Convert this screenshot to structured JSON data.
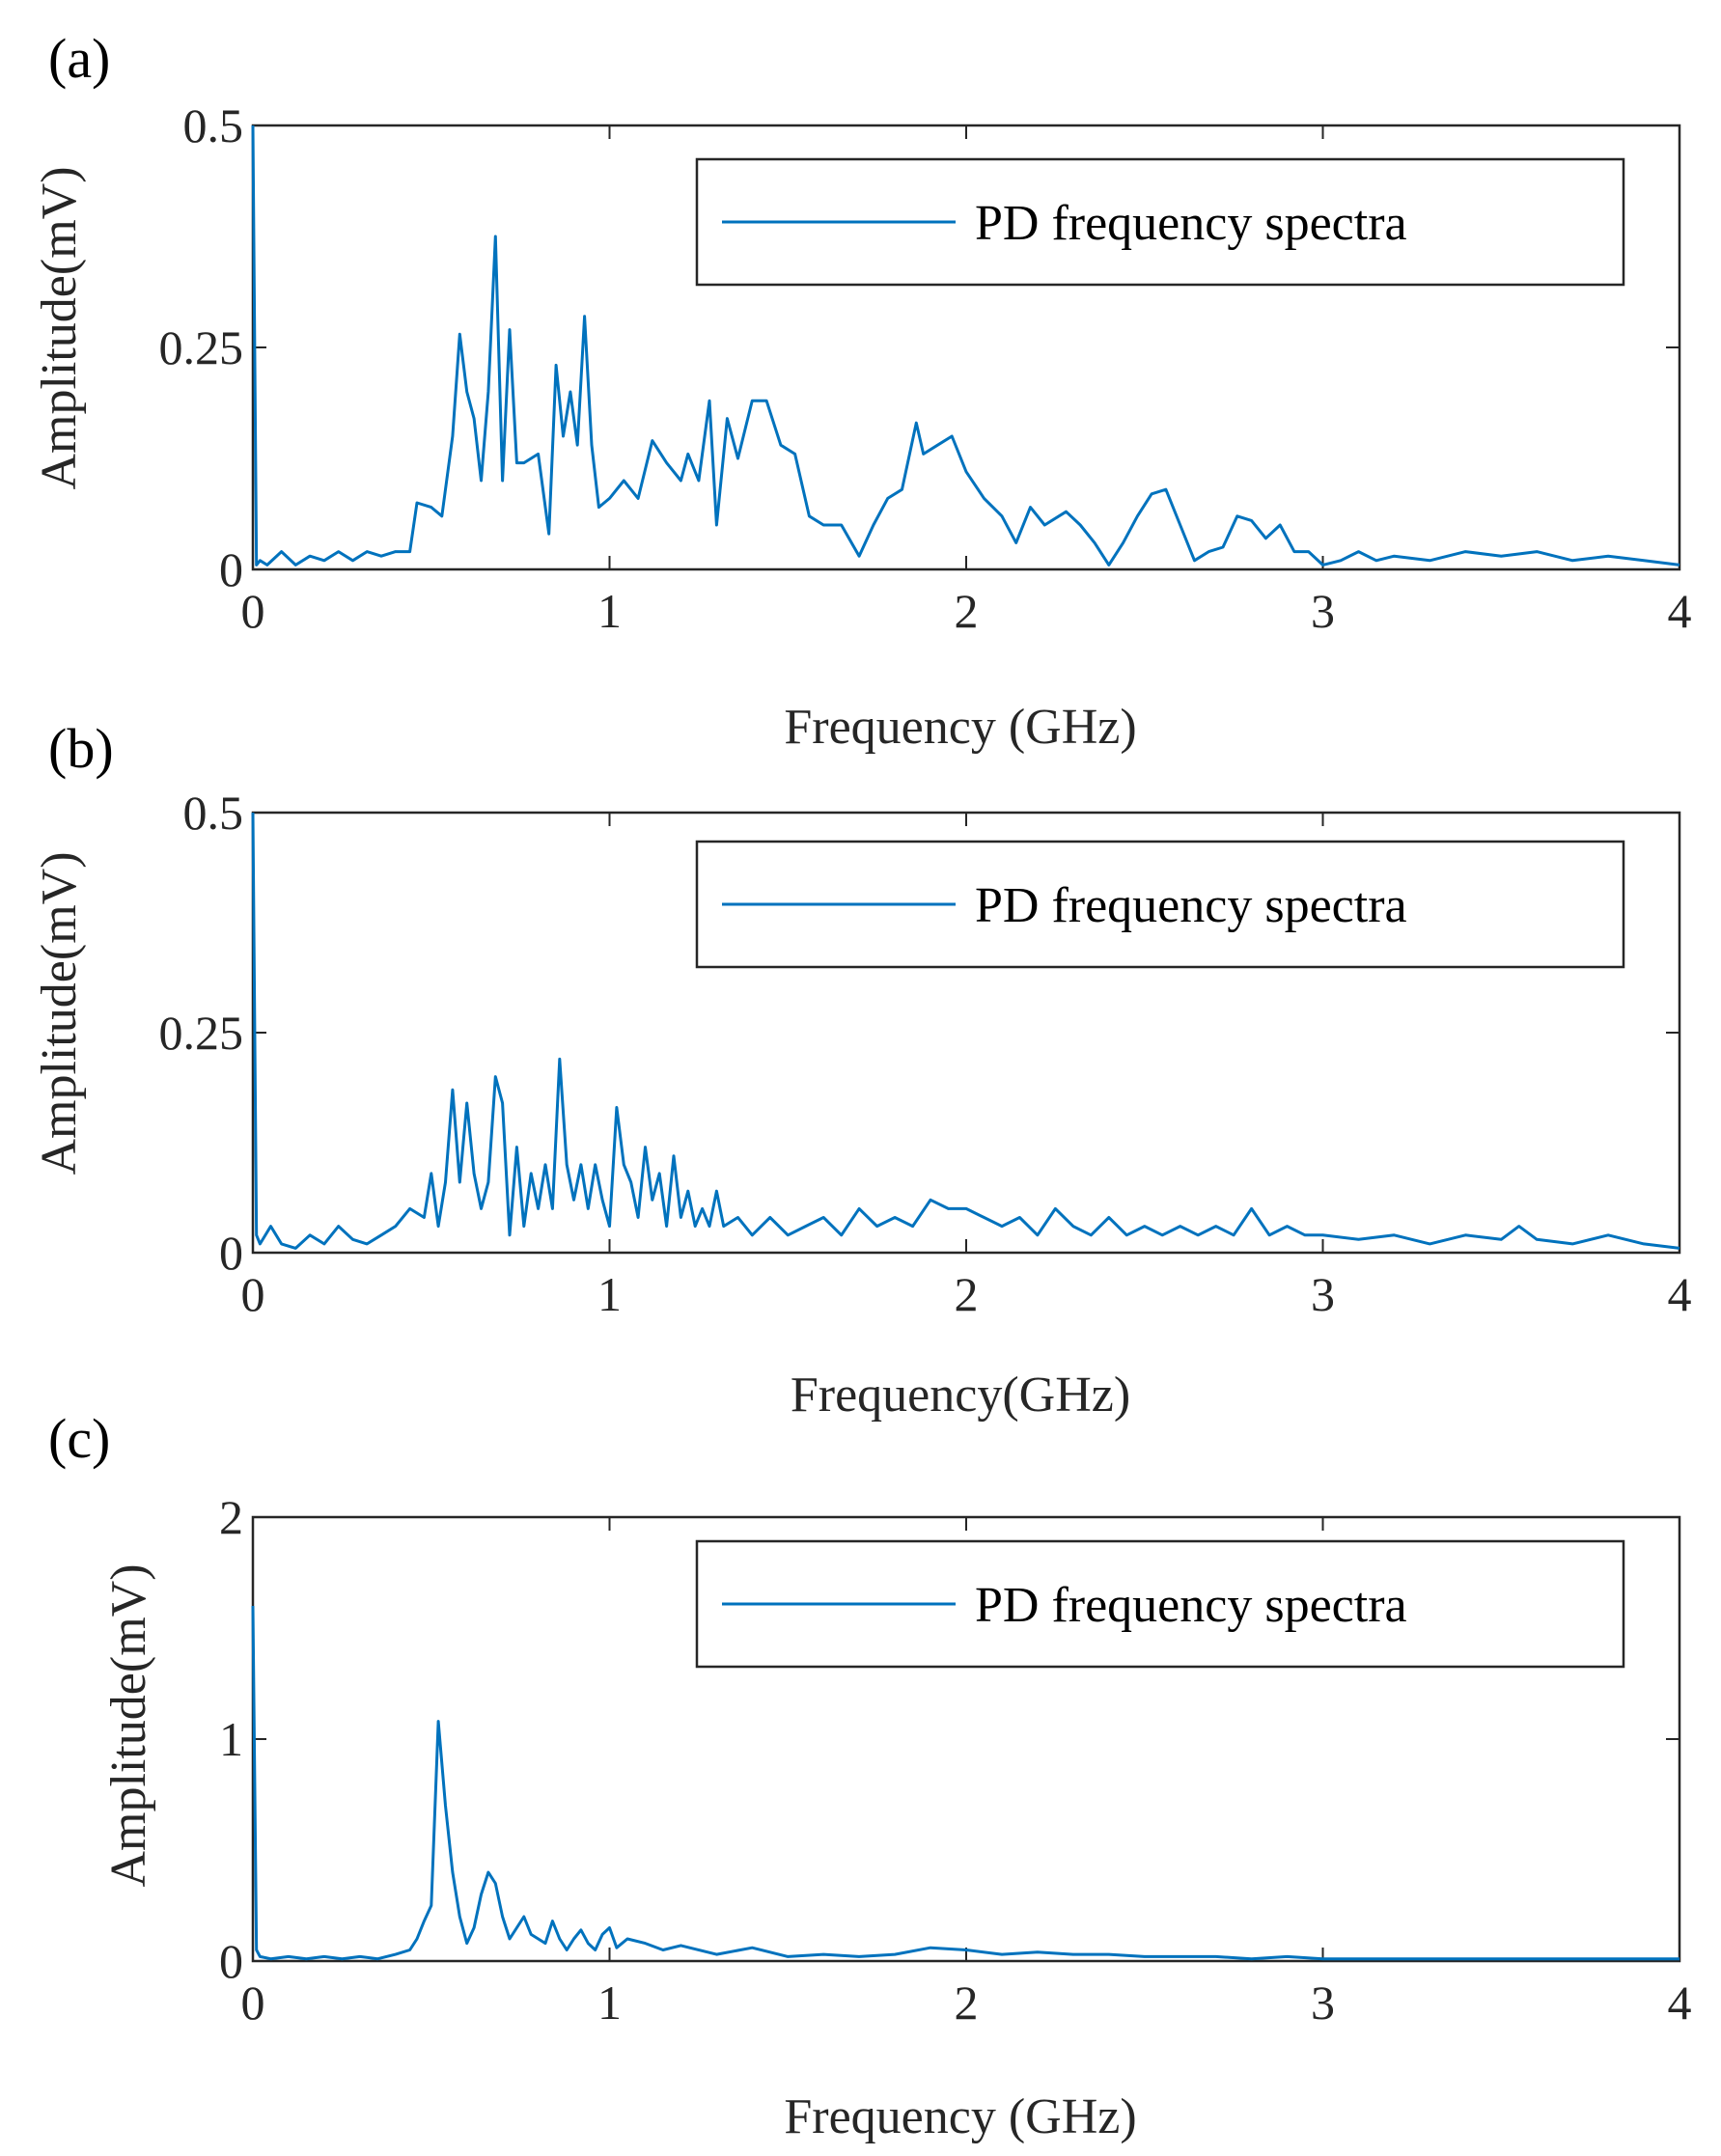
{
  "chart_data": [
    {
      "panel_label": "(a)",
      "type": "line",
      "xlabel": "Frequency (GHz)",
      "ylabel": "Amplitude(mV)",
      "xlim": [
        0,
        4
      ],
      "ylim": [
        0,
        0.5
      ],
      "xticks": [
        0,
        1,
        2,
        3,
        4
      ],
      "xtick_labels": [
        "0",
        "1",
        "2",
        "3",
        "4"
      ],
      "yticks": [
        0,
        0.25,
        0.5
      ],
      "ytick_labels": [
        "0",
        "0.25",
        "0.5"
      ],
      "grid": false,
      "legend_position": "top-right",
      "series": [
        {
          "name": "PD frequency spectra",
          "color": "#0072BD",
          "x": [
            0,
            0.01,
            0.02,
            0.04,
            0.08,
            0.12,
            0.16,
            0.2,
            0.24,
            0.28,
            0.32,
            0.36,
            0.4,
            0.44,
            0.46,
            0.5,
            0.53,
            0.56,
            0.58,
            0.6,
            0.62,
            0.64,
            0.66,
            0.68,
            0.7,
            0.72,
            0.74,
            0.76,
            0.8,
            0.83,
            0.85,
            0.87,
            0.89,
            0.91,
            0.93,
            0.95,
            0.97,
            1.0,
            1.04,
            1.08,
            1.12,
            1.16,
            1.2,
            1.22,
            1.25,
            1.28,
            1.3,
            1.33,
            1.36,
            1.4,
            1.44,
            1.48,
            1.52,
            1.56,
            1.6,
            1.65,
            1.7,
            1.74,
            1.78,
            1.82,
            1.86,
            1.88,
            1.92,
            1.96,
            2.0,
            2.05,
            2.1,
            2.14,
            2.18,
            2.22,
            2.28,
            2.32,
            2.36,
            2.4,
            2.44,
            2.48,
            2.52,
            2.56,
            2.6,
            2.64,
            2.68,
            2.72,
            2.76,
            2.8,
            2.84,
            2.88,
            2.92,
            2.96,
            3.0,
            3.05,
            3.1,
            3.15,
            3.2,
            3.3,
            3.4,
            3.5,
            3.6,
            3.7,
            3.8,
            3.9,
            4.0
          ],
          "values": [
            0.5,
            0.005,
            0.01,
            0.005,
            0.02,
            0.005,
            0.015,
            0.01,
            0.02,
            0.01,
            0.02,
            0.015,
            0.02,
            0.02,
            0.075,
            0.07,
            0.06,
            0.15,
            0.265,
            0.2,
            0.17,
            0.1,
            0.2,
            0.375,
            0.1,
            0.27,
            0.12,
            0.12,
            0.13,
            0.04,
            0.23,
            0.15,
            0.2,
            0.14,
            0.285,
            0.14,
            0.07,
            0.08,
            0.1,
            0.08,
            0.145,
            0.12,
            0.1,
            0.13,
            0.1,
            0.19,
            0.05,
            0.17,
            0.125,
            0.19,
            0.19,
            0.14,
            0.13,
            0.06,
            0.05,
            0.05,
            0.015,
            0.05,
            0.08,
            0.09,
            0.165,
            0.13,
            0.14,
            0.15,
            0.11,
            0.08,
            0.06,
            0.03,
            0.07,
            0.05,
            0.065,
            0.05,
            0.03,
            0.005,
            0.03,
            0.06,
            0.085,
            0.09,
            0.05,
            0.01,
            0.02,
            0.025,
            0.06,
            0.055,
            0.035,
            0.05,
            0.02,
            0.02,
            0.005,
            0.01,
            0.02,
            0.01,
            0.015,
            0.01,
            0.02,
            0.015,
            0.02,
            0.01,
            0.015,
            0.01,
            0.005
          ]
        }
      ]
    },
    {
      "panel_label": "(b)",
      "type": "line",
      "xlabel": "Frequency(GHz)",
      "ylabel": "Amplitude(mV)",
      "xlim": [
        0,
        4
      ],
      "ylim": [
        0,
        0.5
      ],
      "xticks": [
        0,
        1,
        2,
        3,
        4
      ],
      "xtick_labels": [
        "0",
        "1",
        "2",
        "3",
        "4"
      ],
      "yticks": [
        0,
        0.25,
        0.5
      ],
      "ytick_labels": [
        "0",
        "0.25",
        "0.5"
      ],
      "grid": false,
      "legend_position": "top-right",
      "series": [
        {
          "name": "PD frequency spectra",
          "color": "#0072BD",
          "x": [
            0,
            0.01,
            0.02,
            0.05,
            0.08,
            0.12,
            0.16,
            0.2,
            0.24,
            0.28,
            0.32,
            0.36,
            0.4,
            0.44,
            0.48,
            0.5,
            0.52,
            0.54,
            0.56,
            0.58,
            0.6,
            0.62,
            0.64,
            0.66,
            0.68,
            0.7,
            0.72,
            0.74,
            0.76,
            0.78,
            0.8,
            0.82,
            0.84,
            0.86,
            0.88,
            0.9,
            0.92,
            0.94,
            0.96,
            0.98,
            1.0,
            1.02,
            1.04,
            1.06,
            1.08,
            1.1,
            1.12,
            1.14,
            1.16,
            1.18,
            1.2,
            1.22,
            1.24,
            1.26,
            1.28,
            1.3,
            1.32,
            1.36,
            1.4,
            1.45,
            1.5,
            1.55,
            1.6,
            1.65,
            1.7,
            1.75,
            1.8,
            1.85,
            1.9,
            1.95,
            2.0,
            2.05,
            2.1,
            2.15,
            2.2,
            2.25,
            2.3,
            2.35,
            2.4,
            2.45,
            2.5,
            2.55,
            2.6,
            2.65,
            2.7,
            2.75,
            2.8,
            2.85,
            2.9,
            2.95,
            3.0,
            3.1,
            3.2,
            3.3,
            3.4,
            3.5,
            3.55,
            3.6,
            3.7,
            3.8,
            3.9,
            4.0
          ],
          "values": [
            0.5,
            0.02,
            0.01,
            0.03,
            0.01,
            0.005,
            0.02,
            0.01,
            0.03,
            0.015,
            0.01,
            0.02,
            0.03,
            0.05,
            0.04,
            0.09,
            0.03,
            0.08,
            0.185,
            0.08,
            0.17,
            0.09,
            0.05,
            0.08,
            0.2,
            0.17,
            0.02,
            0.12,
            0.03,
            0.09,
            0.05,
            0.1,
            0.05,
            0.22,
            0.1,
            0.06,
            0.1,
            0.05,
            0.1,
            0.06,
            0.03,
            0.165,
            0.1,
            0.08,
            0.04,
            0.12,
            0.06,
            0.09,
            0.03,
            0.11,
            0.04,
            0.07,
            0.03,
            0.05,
            0.03,
            0.07,
            0.03,
            0.04,
            0.02,
            0.04,
            0.02,
            0.03,
            0.04,
            0.02,
            0.05,
            0.03,
            0.04,
            0.03,
            0.06,
            0.05,
            0.05,
            0.04,
            0.03,
            0.04,
            0.02,
            0.05,
            0.03,
            0.02,
            0.04,
            0.02,
            0.03,
            0.02,
            0.03,
            0.02,
            0.03,
            0.02,
            0.05,
            0.02,
            0.03,
            0.02,
            0.02,
            0.015,
            0.02,
            0.01,
            0.02,
            0.015,
            0.03,
            0.015,
            0.01,
            0.02,
            0.01,
            0.005
          ]
        }
      ]
    },
    {
      "panel_label": "(c)",
      "type": "line",
      "xlabel": "Frequency (GHz)",
      "ylabel": "Amplitude(mV)",
      "xlim": [
        0,
        4
      ],
      "ylim": [
        0,
        2
      ],
      "xticks": [
        0,
        1,
        2,
        3,
        4
      ],
      "xtick_labels": [
        "0",
        "1",
        "2",
        "3",
        "4"
      ],
      "yticks": [
        0,
        1,
        2
      ],
      "ytick_labels": [
        "0",
        "1",
        "2"
      ],
      "grid": false,
      "legend_position": "top-right",
      "series": [
        {
          "name": "PD frequency spectra",
          "color": "#0072BD",
          "x": [
            0,
            0.01,
            0.02,
            0.05,
            0.1,
            0.15,
            0.2,
            0.25,
            0.3,
            0.35,
            0.4,
            0.44,
            0.46,
            0.48,
            0.5,
            0.52,
            0.54,
            0.56,
            0.58,
            0.6,
            0.62,
            0.64,
            0.66,
            0.68,
            0.7,
            0.72,
            0.74,
            0.76,
            0.78,
            0.8,
            0.82,
            0.84,
            0.86,
            0.88,
            0.9,
            0.92,
            0.94,
            0.96,
            0.98,
            1.0,
            1.02,
            1.05,
            1.1,
            1.15,
            1.2,
            1.3,
            1.4,
            1.5,
            1.6,
            1.7,
            1.8,
            1.9,
            2.0,
            2.1,
            2.2,
            2.3,
            2.4,
            2.5,
            2.6,
            2.7,
            2.8,
            2.9,
            3.0,
            3.2,
            3.4,
            3.6,
            3.8,
            4.0
          ],
          "values": [
            1.6,
            0.05,
            0.02,
            0.01,
            0.02,
            0.01,
            0.02,
            0.01,
            0.02,
            0.01,
            0.03,
            0.05,
            0.1,
            0.18,
            0.25,
            1.08,
            0.7,
            0.4,
            0.2,
            0.08,
            0.15,
            0.3,
            0.4,
            0.35,
            0.2,
            0.1,
            0.15,
            0.2,
            0.12,
            0.1,
            0.08,
            0.18,
            0.1,
            0.05,
            0.1,
            0.14,
            0.08,
            0.05,
            0.12,
            0.15,
            0.06,
            0.1,
            0.08,
            0.05,
            0.07,
            0.03,
            0.06,
            0.02,
            0.03,
            0.02,
            0.03,
            0.06,
            0.05,
            0.03,
            0.04,
            0.03,
            0.03,
            0.02,
            0.02,
            0.02,
            0.01,
            0.02,
            0.01,
            0.01,
            0.01,
            0.01,
            0.01,
            0.01
          ]
        }
      ]
    }
  ]
}
